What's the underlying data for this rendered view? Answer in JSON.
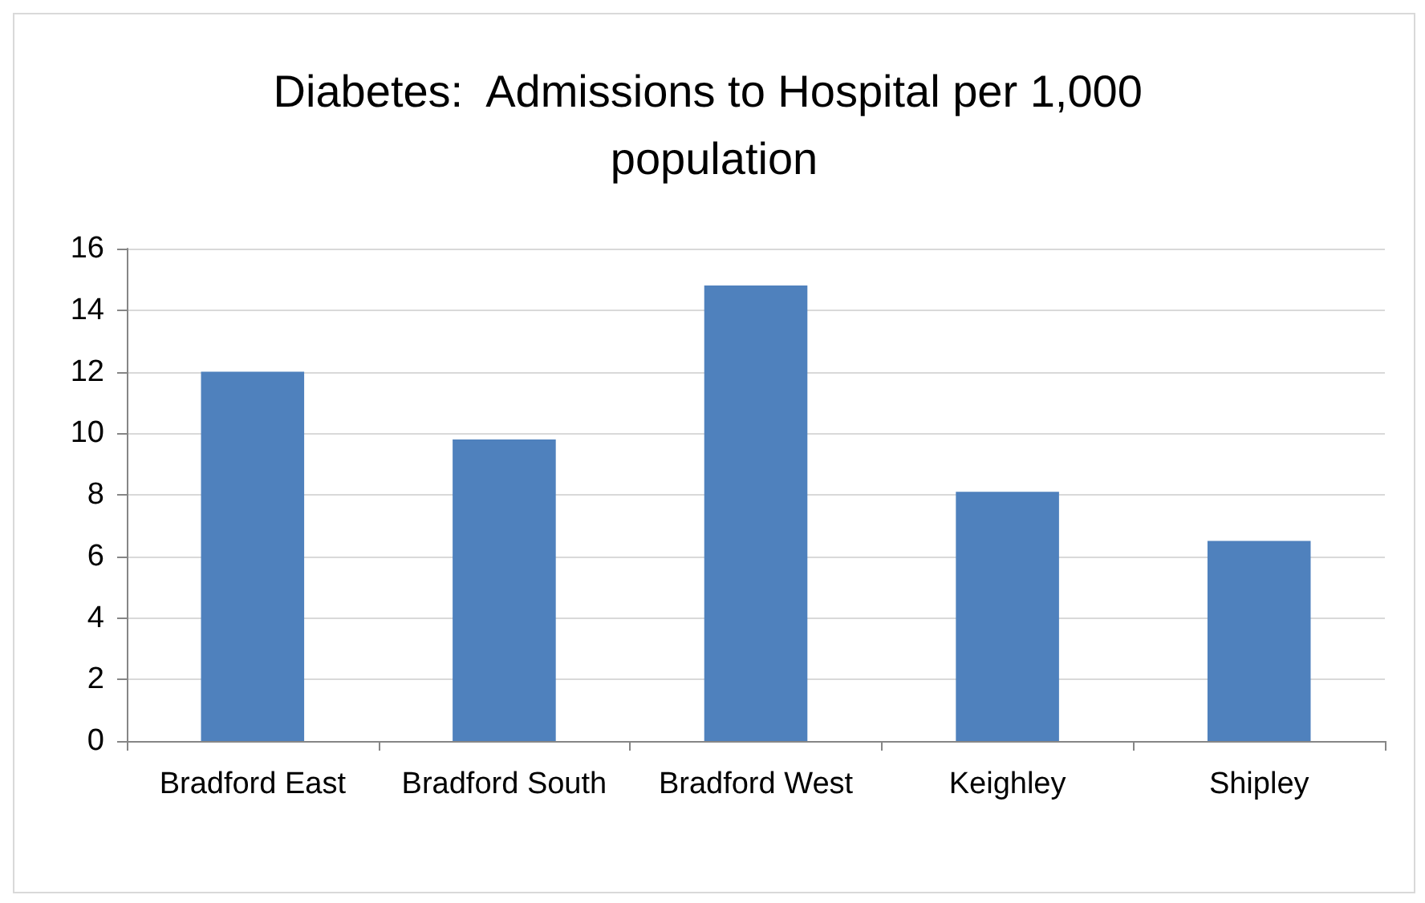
{
  "chart_data": {
    "type": "bar",
    "title": "Diabetes:  Admissions to Hospital per 1,000 population",
    "categories": [
      "Bradford East",
      "Bradford South",
      "Bradford West",
      "Keighley",
      "Shipley"
    ],
    "values": [
      12.0,
      9.8,
      14.8,
      8.1,
      6.5
    ],
    "color": "#4f81bd",
    "ylim": [
      0,
      16
    ],
    "yticks": [
      0,
      2,
      4,
      6,
      8,
      10,
      12,
      14,
      16
    ],
    "grid": "y"
  }
}
